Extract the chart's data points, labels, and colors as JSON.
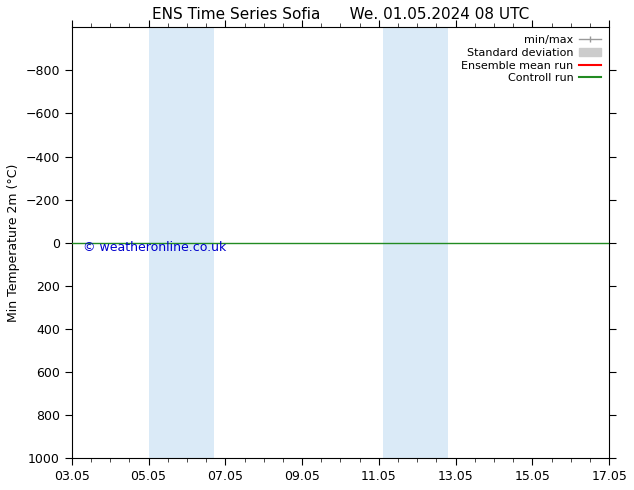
{
  "title_left": "ENS Time Series Sofia",
  "title_right": "We. 01.05.2024 08 UTC",
  "ylabel": "Min Temperature 2m (°C)",
  "ylim": [
    -1000,
    1000
  ],
  "yticks": [
    -800,
    -600,
    -400,
    -200,
    0,
    200,
    400,
    600,
    800,
    1000
  ],
  "xticks_labels": [
    "03.05",
    "05.05",
    "07.05",
    "09.05",
    "11.05",
    "13.05",
    "15.05",
    "17.05"
  ],
  "xticks_pos": [
    0,
    2,
    4,
    6,
    8,
    10,
    12,
    14
  ],
  "x_min": 0,
  "x_max": 14,
  "background_color": "#ffffff",
  "plot_bg_color": "#ffffff",
  "shaded_bands": [
    {
      "x_start": 2.0,
      "x_end": 2.85,
      "color": "#daeaf7"
    },
    {
      "x_start": 2.85,
      "x_end": 3.7,
      "color": "#daeaf7"
    },
    {
      "x_start": 8.1,
      "x_end": 8.95,
      "color": "#daeaf7"
    },
    {
      "x_start": 8.95,
      "x_end": 9.8,
      "color": "#daeaf7"
    }
  ],
  "green_line_y": 0,
  "green_line_color": "#228B22",
  "red_line_color": "#ff0000",
  "copyright_text": "© weatheronline.co.uk",
  "copyright_color": "#0000cc",
  "copyright_fontsize": 9,
  "legend_labels": [
    "min/max",
    "Standard deviation",
    "Ensemble mean run",
    "Controll run"
  ],
  "legend_colors": [
    "#999999",
    "#cccccc",
    "#ff0000",
    "#228B22"
  ],
  "title_fontsize": 11,
  "tick_labelsize": 9,
  "ylabel_fontsize": 9
}
